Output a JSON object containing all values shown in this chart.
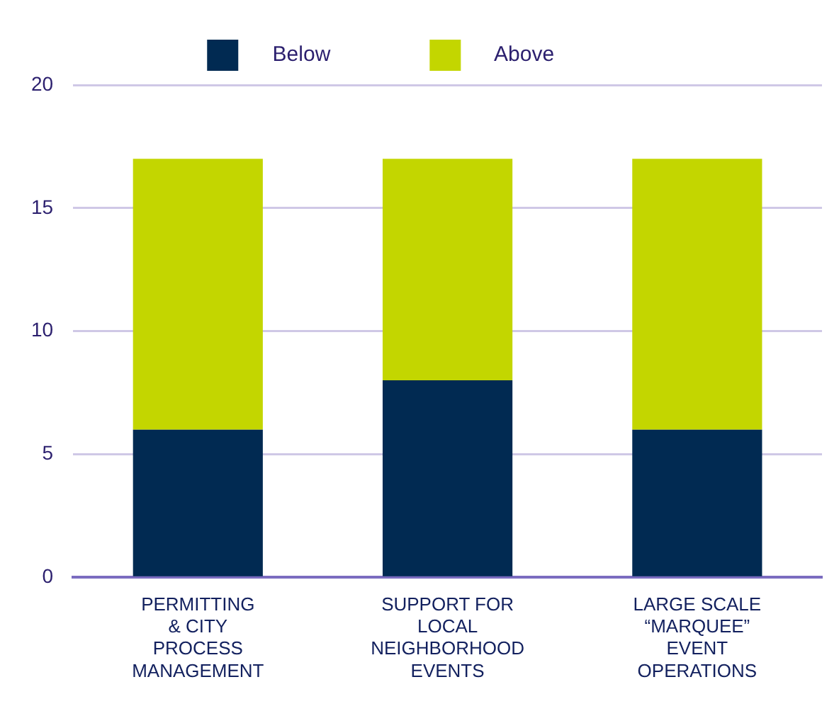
{
  "chart_data": {
    "type": "bar",
    "stacked": true,
    "categories": [
      "PERMITTING & CITY PROCESS MANAGEMENT",
      "SUPPORT FOR LOCAL NEIGHBORHOOD EVENTS",
      "LARGE SCALE “MARQUEE” EVENT OPERATIONS"
    ],
    "series": [
      {
        "name": "Below",
        "color": "#012a52",
        "values": [
          6,
          8,
          6
        ]
      },
      {
        "name": "Above",
        "color": "#c3d600",
        "values": [
          11,
          9,
          11
        ]
      }
    ],
    "ylim": [
      0,
      20
    ],
    "yticks": [
      0,
      5,
      10,
      15,
      20
    ],
    "grid": "y",
    "legend": "top"
  }
}
